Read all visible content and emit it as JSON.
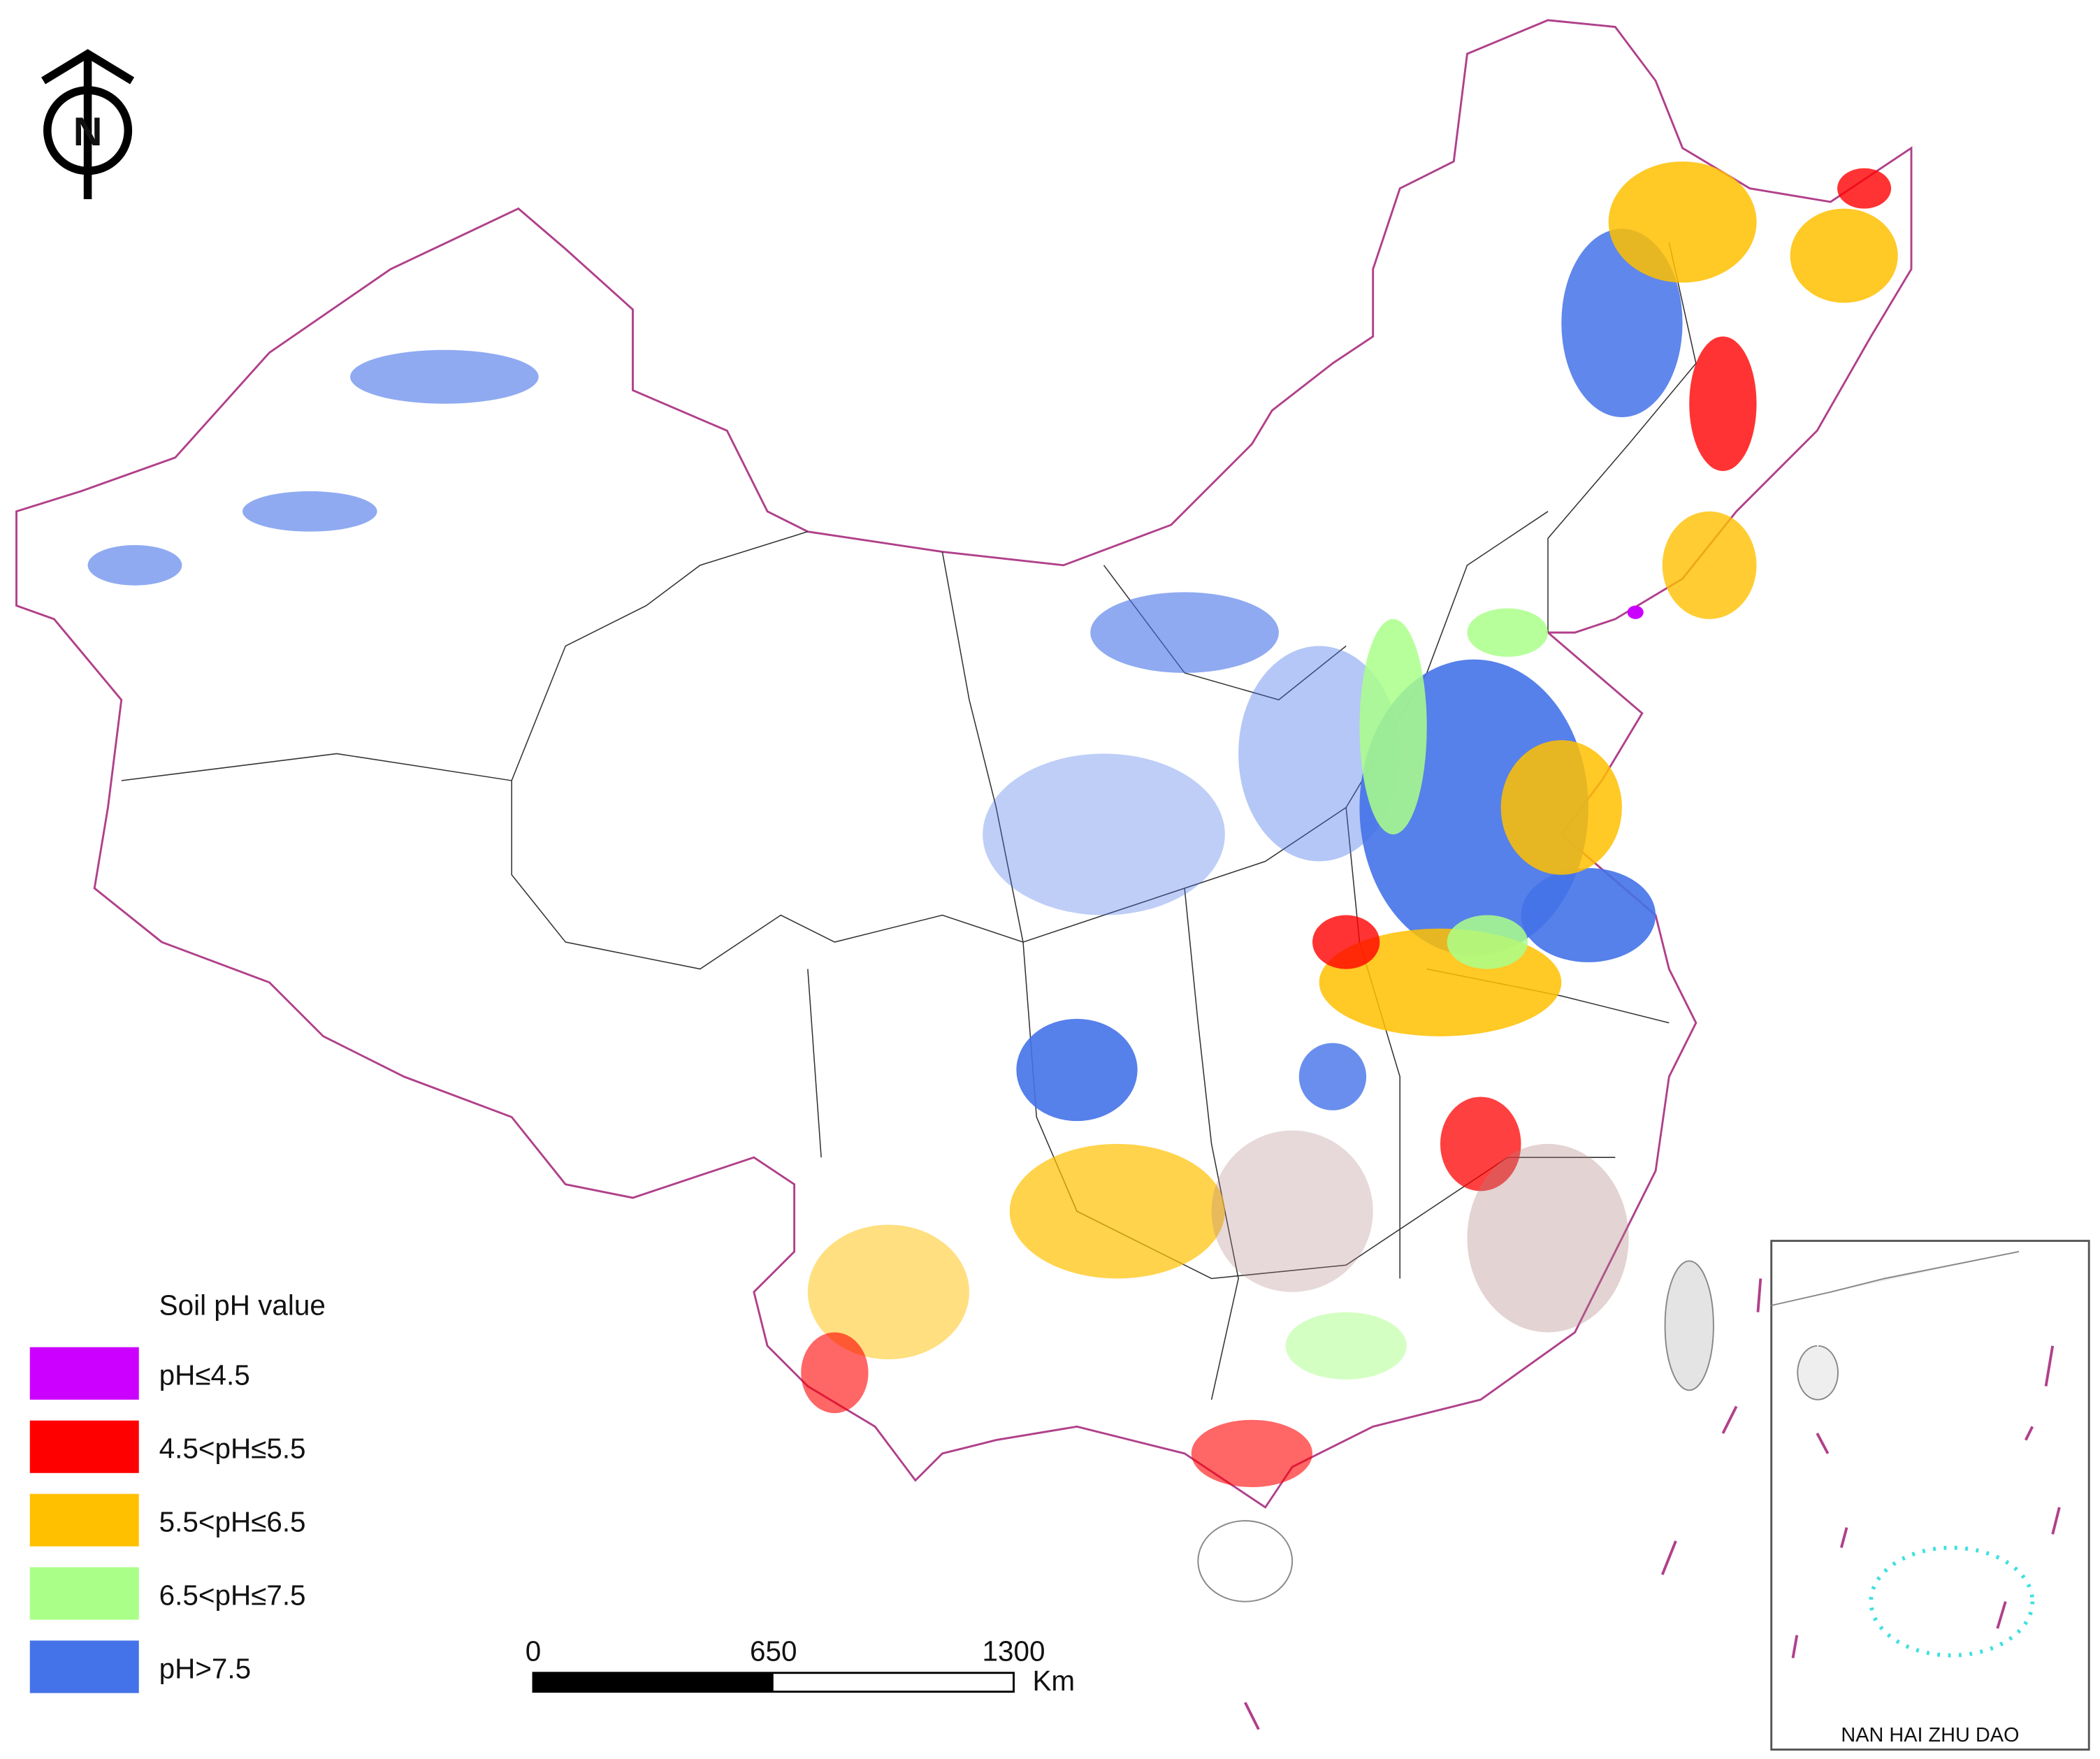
{
  "map": {
    "north_arrow": "N",
    "legend": {
      "title": "Soil pH value",
      "items": [
        {
          "label": "pH≤4.5",
          "color": "#cc00ff"
        },
        {
          "label": "4.5<pH≤5.5",
          "color": "#ff0000"
        },
        {
          "label": "5.5<pH≤6.5",
          "color": "#ffc000"
        },
        {
          "label": "6.5<pH≤7.5",
          "color": "#aaff88"
        },
        {
          "label": "pH>7.5",
          "color": "#4472e8"
        }
      ]
    },
    "scale_bar": {
      "ticks": [
        0,
        650,
        1300
      ],
      "unit": "Km"
    },
    "inset_label": "NAN HAI ZHU DAO"
  }
}
